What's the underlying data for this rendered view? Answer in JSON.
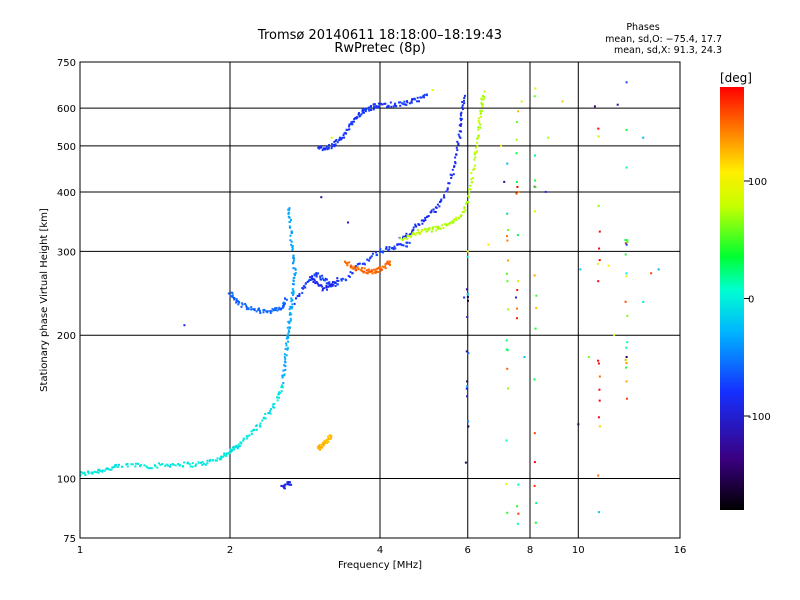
{
  "chart_data": {
    "type": "scatter",
    "title": "Tromsø 20140611 18:18:00–18:19:43",
    "subtitle": "RwPretec (8p)",
    "phases_header": "Phases",
    "phases_o": "mean, sd,O: −75.4, 17.7",
    "phases_x": "mean, sd,X:  91.3, 24.3",
    "xlabel": "Frequency [MHz]",
    "ylabel": "Stationary phase Virtual Height [km]",
    "x_scale": "log",
    "y_scale": "log",
    "xlim": [
      1,
      16
    ],
    "ylim": [
      75,
      750
    ],
    "x_ticks": [
      1,
      2,
      4,
      6,
      8,
      10,
      16
    ],
    "x_tick_labels": [
      "1",
      "2",
      "4",
      "6",
      "8",
      "10",
      "16"
    ],
    "y_ticks": [
      75,
      100,
      200,
      300,
      400,
      500,
      600,
      750
    ],
    "y_tick_labels": [
      "75",
      "100",
      "200",
      "300",
      "400",
      "500",
      "600",
      "750"
    ],
    "grid": true,
    "colorbar": {
      "label": "[deg]",
      "range": [
        -180,
        180
      ],
      "ticks": [
        100,
        0,
        -100
      ],
      "tick_labels": [
        "100",
        "0",
        "-100"
      ]
    },
    "traces": [
      {
        "phase": -5,
        "x": [
          1.0,
          1.05,
          1.1,
          1.15,
          1.2,
          1.3,
          1.4,
          1.5,
          1.6,
          1.7,
          1.8,
          1.9,
          1.95,
          2.0,
          2.05,
          2.1,
          2.2,
          2.3,
          2.4,
          2.5,
          2.55
        ],
        "y": [
          102,
          103,
          104,
          105,
          106,
          107,
          106,
          107,
          107,
          107,
          108,
          110,
          112,
          114,
          116,
          119,
          124,
          130,
          138,
          148,
          158
        ]
      },
      {
        "phase": -35,
        "x": [
          2.55,
          2.58,
          2.6,
          2.62,
          2.64,
          2.66,
          2.68,
          2.7,
          2.68,
          2.66,
          2.64,
          2.62
        ],
        "y": [
          160,
          175,
          190,
          205,
          220,
          235,
          250,
          270,
          290,
          320,
          350,
          375
        ]
      },
      {
        "phase": -60,
        "x": [
          2.0,
          2.05,
          2.1,
          2.2,
          2.3,
          2.4,
          2.5,
          2.55,
          2.6
        ],
        "y": [
          245,
          238,
          232,
          227,
          225,
          225,
          226,
          230,
          240
        ]
      },
      {
        "phase": -75,
        "x": [
          2.7,
          2.8,
          2.9,
          3.0,
          3.1,
          3.2,
          3.4,
          3.6,
          3.8,
          4.0,
          4.2,
          4.4,
          4.6
        ],
        "y": [
          235,
          250,
          262,
          268,
          262,
          255,
          262,
          278,
          290,
          300,
          305,
          308,
          312
        ]
      },
      {
        "phase": -90,
        "x": [
          2.9,
          3.0,
          3.1,
          3.2,
          3.3
        ],
        "y": [
          265,
          255,
          250,
          255,
          262
        ]
      },
      {
        "phase": 150,
        "x": [
          3.4,
          3.5,
          3.6,
          3.7,
          3.8,
          3.9,
          4.0,
          4.1,
          4.2
        ],
        "y": [
          285,
          280,
          276,
          274,
          272,
          272,
          275,
          280,
          285
        ]
      },
      {
        "phase": -85,
        "x": [
          4.4,
          4.6,
          4.8,
          5.0,
          5.2,
          5.4,
          5.6,
          5.7,
          5.8,
          5.85,
          5.9
        ],
        "y": [
          318,
          330,
          342,
          356,
          370,
          395,
          440,
          490,
          540,
          590,
          640
        ]
      },
      {
        "phase": -80,
        "x": [
          3.0,
          3.1,
          3.2,
          3.3,
          3.4,
          3.5,
          3.6,
          3.7,
          3.8,
          3.9,
          4.0,
          4.2,
          4.4,
          4.6,
          4.8,
          5.0
        ],
        "y": [
          495,
          495,
          500,
          510,
          530,
          555,
          575,
          590,
          598,
          605,
          608,
          610,
          612,
          618,
          625,
          640
        ]
      },
      {
        "phase": 75,
        "x": [
          4.4,
          4.6,
          4.8,
          5.0,
          5.2,
          5.4,
          5.6,
          5.8,
          6.0,
          6.1,
          6.2,
          6.3,
          6.35,
          6.4,
          6.45
        ],
        "y": [
          318,
          324,
          330,
          332,
          335,
          340,
          345,
          355,
          380,
          420,
          470,
          520,
          570,
          610,
          650
        ]
      },
      {
        "phase": 125,
        "x": [
          3.0,
          3.05,
          3.1,
          3.15,
          3.2
        ],
        "y": [
          115,
          117,
          119,
          121,
          124
        ]
      },
      {
        "phase": -95,
        "x": [
          2.55,
          2.6,
          2.65
        ],
        "y": [
          96,
          97,
          98
        ]
      }
    ],
    "scatter_points": [
      {
        "x": 1.62,
        "y": 210,
        "phase": -90
      },
      {
        "x": 3.2,
        "y": 520,
        "phase": 90
      },
      {
        "x": 3.05,
        "y": 390,
        "phase": -130
      },
      {
        "x": 3.45,
        "y": 345,
        "phase": -100
      },
      {
        "x": 5.1,
        "y": 655,
        "phase": 90
      },
      {
        "x": 5.9,
        "y": 240,
        "phase": -80
      },
      {
        "x": 5.95,
        "y": 108,
        "phase": -150
      },
      {
        "x": 6.0,
        "y": 300,
        "phase": 100
      },
      {
        "x": 6.6,
        "y": 310,
        "phase": 110
      },
      {
        "x": 7.0,
        "y": 500,
        "phase": 110
      },
      {
        "x": 7.1,
        "y": 420,
        "phase": -130
      },
      {
        "x": 7.2,
        "y": 360,
        "phase": -10
      },
      {
        "x": 7.2,
        "y": 170,
        "phase": 150
      },
      {
        "x": 7.5,
        "y": 240,
        "phase": -90
      },
      {
        "x": 7.6,
        "y": 400,
        "phase": 140
      },
      {
        "x": 7.7,
        "y": 620,
        "phase": 80
      },
      {
        "x": 7.8,
        "y": 180,
        "phase": -20
      },
      {
        "x": 8.2,
        "y": 660,
        "phase": 90
      },
      {
        "x": 8.6,
        "y": 400,
        "phase": -90
      },
      {
        "x": 8.7,
        "y": 520,
        "phase": 70
      },
      {
        "x": 9.3,
        "y": 620,
        "phase": 120
      },
      {
        "x": 10.0,
        "y": 130,
        "phase": -160
      },
      {
        "x": 10.1,
        "y": 275,
        "phase": -20
      },
      {
        "x": 10.5,
        "y": 180,
        "phase": 60
      },
      {
        "x": 10.8,
        "y": 605,
        "phase": -140
      },
      {
        "x": 11.0,
        "y": 85,
        "phase": -20
      },
      {
        "x": 11.5,
        "y": 280,
        "phase": 110
      },
      {
        "x": 11.8,
        "y": 200,
        "phase": 80
      },
      {
        "x": 12.0,
        "y": 610,
        "phase": -130
      },
      {
        "x": 12.5,
        "y": 680,
        "phase": -70
      },
      {
        "x": 12.5,
        "y": 540,
        "phase": 40
      },
      {
        "x": 12.5,
        "y": 450,
        "phase": 20
      },
      {
        "x": 12.5,
        "y": 310,
        "phase": -90
      },
      {
        "x": 12.5,
        "y": 180,
        "phase": -150
      },
      {
        "x": 12.5,
        "y": 160,
        "phase": 130
      },
      {
        "x": 13.5,
        "y": 520,
        "phase": -30
      },
      {
        "x": 13.5,
        "y": 235,
        "phase": -5
      },
      {
        "x": 14.5,
        "y": 275,
        "phase": -30
      },
      {
        "x": 14.0,
        "y": 270,
        "phase": 160
      }
    ],
    "vertical_columns": [
      {
        "x": 6.0,
        "y": [
          110,
          300
        ],
        "phase": -80
      },
      {
        "x": 7.2,
        "y": [
          82,
          520
        ],
        "phase": 60
      },
      {
        "x": 7.55,
        "y": [
          80,
          660
        ],
        "phase": 100
      },
      {
        "x": 8.2,
        "y": [
          78,
          640
        ],
        "phase": 100
      },
      {
        "x": 11.0,
        "y": [
          95,
          640
        ],
        "phase": 140
      },
      {
        "x": 12.5,
        "y": [
          140,
          540
        ],
        "phase": 80
      }
    ]
  }
}
